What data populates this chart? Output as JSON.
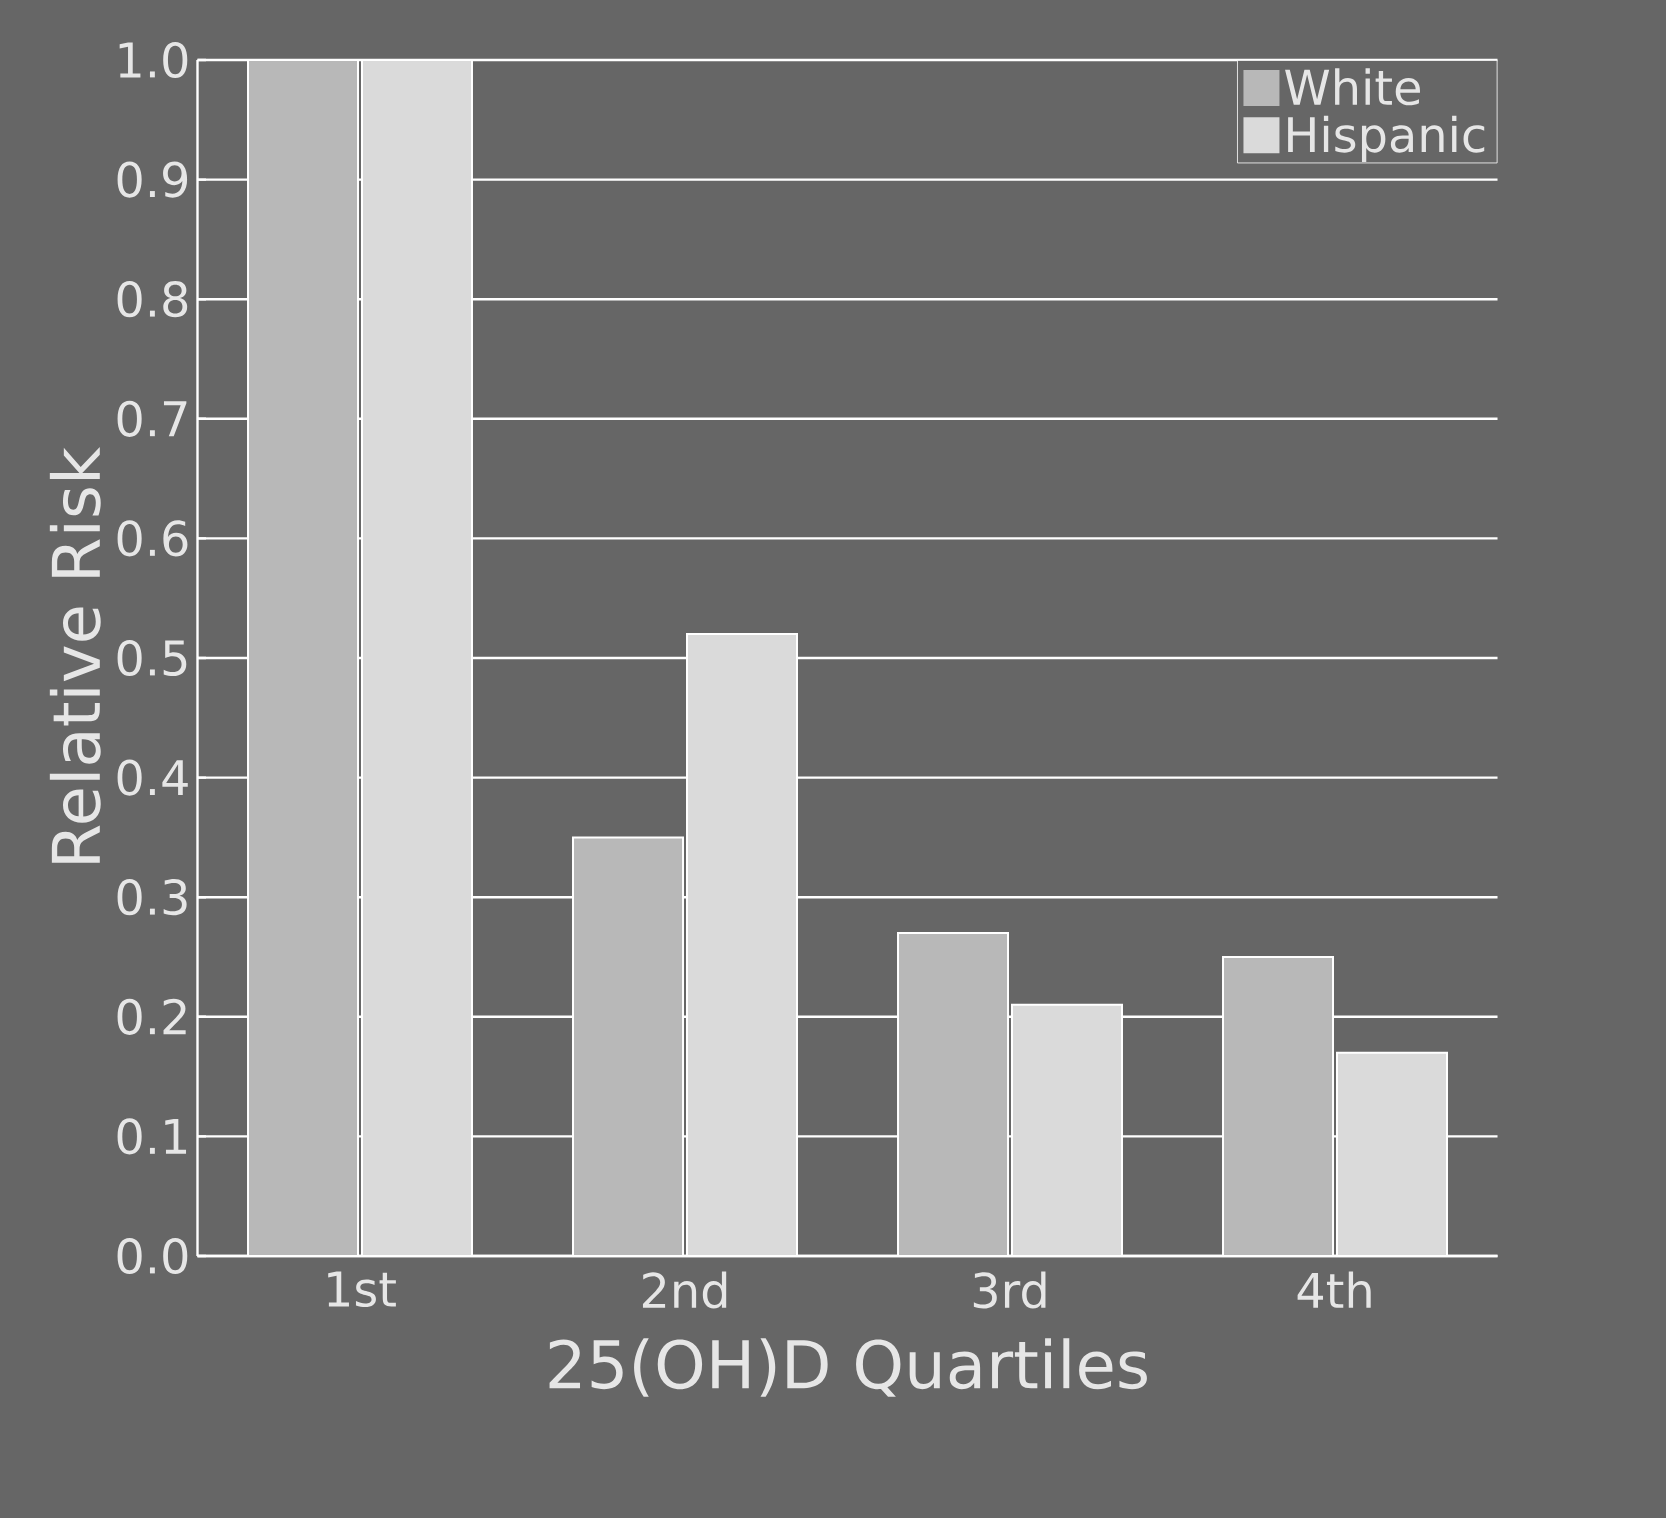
{
  "chart_data": {
    "type": "bar",
    "xlabel": "25(OH)D Quartiles",
    "ylabel": "Relative Risk",
    "categories": [
      "1st",
      "2nd",
      "3rd",
      "4th"
    ],
    "series": [
      {
        "name": "White",
        "color": "#b8b8b8",
        "values": [
          1.0,
          0.35,
          0.27,
          0.25
        ]
      },
      {
        "name": "Hispanic",
        "color": "#dadada",
        "values": [
          1.0,
          0.52,
          0.21,
          0.17
        ]
      }
    ],
    "ylim": [
      0,
      1.0
    ],
    "yticks": [
      {
        "value": 0,
        "label": "0.0"
      },
      {
        "value": 0.1,
        "label": "0.1"
      },
      {
        "value": 0.2,
        "label": "0.2"
      },
      {
        "value": 0.3,
        "label": "0.3"
      },
      {
        "value": 0.4,
        "label": "0.4"
      },
      {
        "value": 0.5,
        "label": "0.5"
      },
      {
        "value": 0.6,
        "label": "0.6"
      },
      {
        "value": 0.7,
        "label": "0.7"
      },
      {
        "value": 0.8,
        "label": "0.8"
      },
      {
        "value": 0.9,
        "label": "0.9"
      },
      {
        "value": 1.0,
        "label": "1.0"
      }
    ],
    "grid": "y",
    "legend": "top right"
  }
}
